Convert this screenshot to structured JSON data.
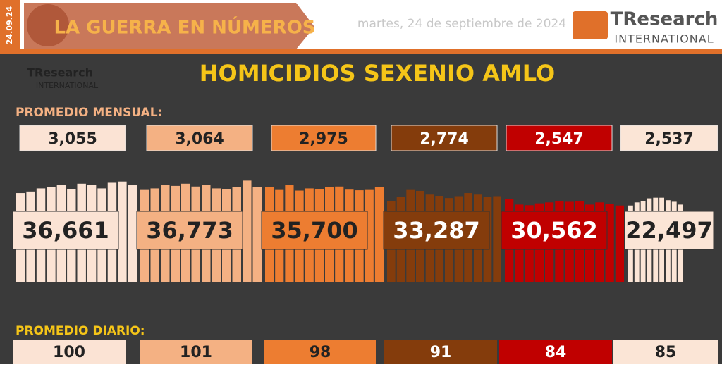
{
  "header": {
    "side_date": "24.09.24",
    "section": "LA GUERRA EN NÚMEROS",
    "date": "martes, 24 de septiembre de 2024",
    "logo_main": "TResearch",
    "logo_sub": "INTERNATIONAL"
  },
  "watermark": {
    "main": "TResearch",
    "sub": "INTERNATIONAL"
  },
  "title": "HOMICIDIOS SEXENIO AMLO",
  "monthly_label": "PROMEDIO MENSUAL:",
  "daily_label": "PROMEDIO DIARIO:",
  "years": [
    {
      "monthly_avg": "3,055",
      "total": "36,661",
      "daily_avg": "100",
      "color": "#fbe3d4",
      "text_color": "#222",
      "months": [
        2850,
        2900,
        3000,
        3050,
        3100,
        2980,
        3150,
        3120,
        3000,
        3180,
        3220,
        3100
      ]
    },
    {
      "monthly_avg": "3,064",
      "total": "36,773",
      "daily_avg": "101",
      "color": "#f4b183",
      "text_color": "#222",
      "months": [
        2950,
        3000,
        3120,
        3080,
        3150,
        3060,
        3120,
        3000,
        2980,
        3050,
        3250,
        3040
      ]
    },
    {
      "monthly_avg": "2,975",
      "total": "35,700",
      "daily_avg": "98",
      "color": "#ed7d31",
      "text_color": "#222",
      "months": [
        3050,
        2950,
        3100,
        2930,
        3000,
        2980,
        3050,
        3060,
        2960,
        2940,
        2950,
        3050
      ]
    },
    {
      "monthly_avg": "2,774",
      "total": "33,287",
      "daily_avg": "91",
      "color": "#843c0c",
      "text_color": "#fff",
      "months": [
        2580,
        2720,
        2950,
        2920,
        2800,
        2760,
        2690,
        2750,
        2850,
        2800,
        2720,
        2750
      ]
    },
    {
      "monthly_avg": "2,547",
      "total": "30,562",
      "daily_avg": "84",
      "color": "#c00000",
      "text_color": "#fff",
      "months": [
        2650,
        2480,
        2460,
        2520,
        2550,
        2590,
        2570,
        2600,
        2480,
        2550,
        2500,
        2450
      ]
    },
    {
      "monthly_avg": "2,537",
      "total": "22,497",
      "daily_avg": "85",
      "color": "#fbe5d6",
      "text_color": "#222",
      "months": [
        2450,
        2550,
        2600,
        2680,
        2700,
        2700,
        2620,
        2570,
        2480
      ]
    }
  ]
}
